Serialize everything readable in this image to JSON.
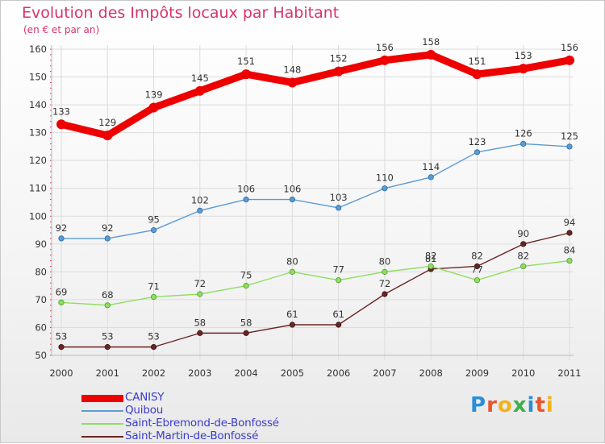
{
  "title": "Evolution des Impôts locaux par Habitant",
  "subtitle": "(en € et par an)",
  "logo": {
    "text": "Proxiti",
    "colors": [
      "#2a8fd8",
      "#e8562a",
      "#f2b21b",
      "#3db04a",
      "#2a8fd8",
      "#e8562a",
      "#f2b21b"
    ]
  },
  "chart_data": {
    "type": "line",
    "x": [
      "2000",
      "2001",
      "2002",
      "2003",
      "2004",
      "2005",
      "2006",
      "2007",
      "2008",
      "2009",
      "2010",
      "2011"
    ],
    "ylim": [
      50,
      160
    ],
    "yticks": [
      "50",
      "60",
      "70",
      "80",
      "90",
      "100",
      "110",
      "120",
      "130",
      "140",
      "150",
      "160"
    ],
    "grid": true,
    "legend": "bottom-left",
    "series": [
      {
        "name": "CANISY",
        "color": "#ee0000",
        "values": [
          133,
          129,
          139,
          145,
          151,
          148,
          152,
          156,
          158,
          151,
          153,
          156
        ]
      },
      {
        "name": "Quibou",
        "color": "#5b9bd5",
        "values": [
          92,
          92,
          95,
          102,
          106,
          106,
          103,
          110,
          114,
          123,
          126,
          125
        ]
      },
      {
        "name": "Saint-Ebremond-de-Bonfossé",
        "color": "#90dd60",
        "values": [
          69,
          68,
          71,
          72,
          75,
          80,
          77,
          80,
          82,
          77,
          82,
          84
        ]
      },
      {
        "name": "Saint-Martin-de-Bonfossé",
        "color": "#6b2525",
        "values": [
          53,
          53,
          53,
          58,
          58,
          61,
          61,
          72,
          81,
          82,
          90,
          94
        ]
      }
    ]
  }
}
